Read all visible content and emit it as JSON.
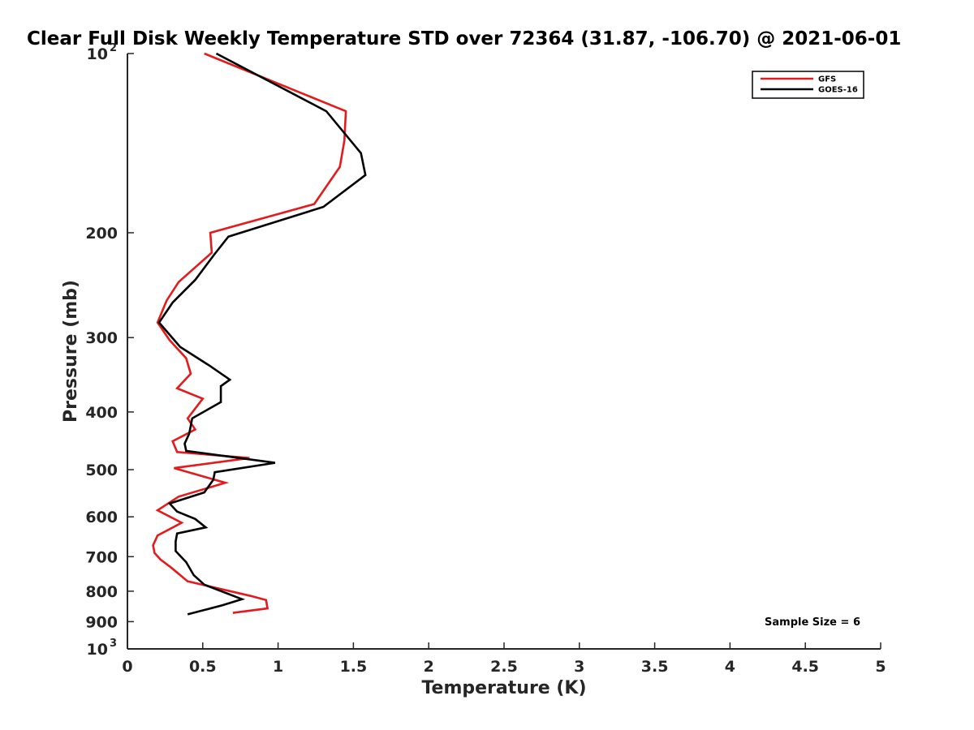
{
  "chart_data": {
    "type": "line",
    "title": "Clear Full Disk Weekly Temperature STD over 72364 (31.87, -106.70) @ 2021-06-01",
    "xlabel": "Temperature (K)",
    "ylabel": "Pressure (mb)",
    "xlim": [
      0,
      5
    ],
    "ylim": [
      100,
      1000
    ],
    "y_scale": "log",
    "y_reversed": true,
    "x_ticks": [
      {
        "value": 0,
        "label": "0"
      },
      {
        "value": 0.5,
        "label": "0.5"
      },
      {
        "value": 1,
        "label": "1"
      },
      {
        "value": 1.5,
        "label": "1.5"
      },
      {
        "value": 2,
        "label": "2"
      },
      {
        "value": 2.5,
        "label": "2.5"
      },
      {
        "value": 3,
        "label": "3"
      },
      {
        "value": 3.5,
        "label": "3.5"
      },
      {
        "value": 4,
        "label": "4"
      },
      {
        "value": 4.5,
        "label": "4.5"
      },
      {
        "value": 5,
        "label": "5"
      }
    ],
    "y_ticks": [
      {
        "value": 100,
        "base": "10",
        "exp": "2"
      },
      {
        "value": 200,
        "base": "200",
        "exp": ""
      },
      {
        "value": 300,
        "base": "300",
        "exp": ""
      },
      {
        "value": 400,
        "base": "400",
        "exp": ""
      },
      {
        "value": 500,
        "base": "500",
        "exp": ""
      },
      {
        "value": 600,
        "base": "600",
        "exp": ""
      },
      {
        "value": 700,
        "base": "700",
        "exp": ""
      },
      {
        "value": 800,
        "base": "800",
        "exp": ""
      },
      {
        "value": 900,
        "base": "900",
        "exp": ""
      },
      {
        "value": 1000,
        "base": "10",
        "exp": "3"
      }
    ],
    "grid": false,
    "legend_position": "top-right",
    "series": [
      {
        "name": "GFS",
        "color": "#e41a1c",
        "points": [
          [
            0.51,
            100
          ],
          [
            1.45,
            125
          ],
          [
            1.44,
            140
          ],
          [
            1.41,
            155
          ],
          [
            1.24,
            179
          ],
          [
            0.55,
            200
          ],
          [
            0.56,
            216
          ],
          [
            0.34,
            242
          ],
          [
            0.26,
            260
          ],
          [
            0.2,
            283
          ],
          [
            0.28,
            303
          ],
          [
            0.39,
            325
          ],
          [
            0.42,
            345
          ],
          [
            0.33,
            365
          ],
          [
            0.5,
            380
          ],
          [
            0.4,
            410
          ],
          [
            0.45,
            428
          ],
          [
            0.3,
            448
          ],
          [
            0.33,
            467
          ],
          [
            0.81,
            478
          ],
          [
            0.31,
            497
          ],
          [
            0.65,
            526
          ],
          [
            0.34,
            555
          ],
          [
            0.2,
            585
          ],
          [
            0.36,
            614
          ],
          [
            0.2,
            645
          ],
          [
            0.17,
            670
          ],
          [
            0.18,
            690
          ],
          [
            0.22,
            708
          ],
          [
            0.29,
            730
          ],
          [
            0.4,
            770
          ],
          [
            0.82,
            815
          ],
          [
            0.92,
            828
          ],
          [
            0.93,
            855
          ],
          [
            0.7,
            870
          ]
        ]
      },
      {
        "name": "GOES-16",
        "color": "#000000",
        "points": [
          [
            0.59,
            100
          ],
          [
            1.32,
            125
          ],
          [
            1.55,
            147
          ],
          [
            1.58,
            160
          ],
          [
            1.3,
            181
          ],
          [
            0.67,
            203
          ],
          [
            0.58,
            217
          ],
          [
            0.45,
            240
          ],
          [
            0.3,
            262
          ],
          [
            0.21,
            283
          ],
          [
            0.35,
            311
          ],
          [
            0.55,
            335
          ],
          [
            0.68,
            353
          ],
          [
            0.62,
            362
          ],
          [
            0.62,
            385
          ],
          [
            0.43,
            410
          ],
          [
            0.41,
            435
          ],
          [
            0.38,
            452
          ],
          [
            0.39,
            465
          ],
          [
            0.98,
            487
          ],
          [
            0.58,
            505
          ],
          [
            0.57,
            520
          ],
          [
            0.51,
            546
          ],
          [
            0.28,
            570
          ],
          [
            0.33,
            588
          ],
          [
            0.45,
            605
          ],
          [
            0.52,
            625
          ],
          [
            0.33,
            640
          ],
          [
            0.32,
            660
          ],
          [
            0.32,
            685
          ],
          [
            0.39,
            715
          ],
          [
            0.44,
            752
          ],
          [
            0.51,
            780
          ],
          [
            0.76,
            825
          ],
          [
            0.63,
            845
          ],
          [
            0.4,
            875
          ]
        ]
      }
    ],
    "annotation": "Sample Size = 6"
  }
}
